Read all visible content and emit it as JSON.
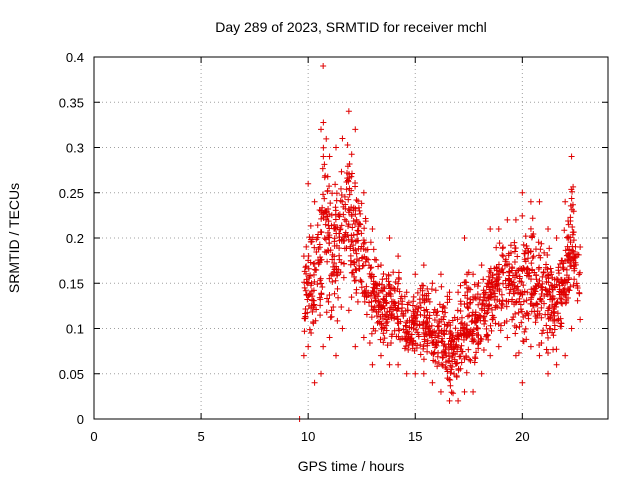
{
  "chart_data": {
    "type": "scatter",
    "title": "Day 289 of 2023, SRMTID for receiver mchl",
    "xlabel": "GPS time / hours",
    "ylabel": "SRMTID / TECUs",
    "xlim": [
      0,
      24
    ],
    "ylim": [
      0,
      0.4
    ],
    "x_ticks": [
      0,
      5,
      10,
      15,
      20
    ],
    "x_tick_labels": [
      "0",
      "5",
      "10",
      "15",
      "20"
    ],
    "y_ticks": [
      0,
      0.05,
      0.1,
      0.15,
      0.2,
      0.25,
      0.3,
      0.35,
      0.4
    ],
    "y_tick_labels": [
      "0",
      "0.05",
      "0.1",
      "0.15",
      "0.2",
      "0.25",
      "0.3",
      "0.35",
      "0.4"
    ],
    "grid": true,
    "marker": "plus",
    "series": [
      {
        "name": "SRMTID",
        "color": "#e00000",
        "envelope": [
          {
            "x": 9.6,
            "y_min": 0.0,
            "y_max": 0.0
          },
          {
            "x": 9.8,
            "y_min": 0.07,
            "y_max": 0.18
          },
          {
            "x": 10.0,
            "y_min": 0.08,
            "y_max": 0.26
          },
          {
            "x": 10.3,
            "y_min": 0.04,
            "y_max": 0.24
          },
          {
            "x": 10.6,
            "y_min": 0.05,
            "y_max": 0.32
          },
          {
            "x": 10.7,
            "y_min": 0.08,
            "y_max": 0.39
          },
          {
            "x": 11.0,
            "y_min": 0.09,
            "y_max": 0.29
          },
          {
            "x": 11.3,
            "y_min": 0.07,
            "y_max": 0.3
          },
          {
            "x": 11.6,
            "y_min": 0.1,
            "y_max": 0.31
          },
          {
            "x": 11.9,
            "y_min": 0.12,
            "y_max": 0.34
          },
          {
            "x": 12.2,
            "y_min": 0.08,
            "y_max": 0.32
          },
          {
            "x": 12.6,
            "y_min": 0.09,
            "y_max": 0.25
          },
          {
            "x": 13.0,
            "y_min": 0.06,
            "y_max": 0.21
          },
          {
            "x": 13.4,
            "y_min": 0.07,
            "y_max": 0.17
          },
          {
            "x": 13.8,
            "y_min": 0.06,
            "y_max": 0.2
          },
          {
            "x": 14.2,
            "y_min": 0.06,
            "y_max": 0.18
          },
          {
            "x": 14.6,
            "y_min": 0.05,
            "y_max": 0.14
          },
          {
            "x": 15.0,
            "y_min": 0.05,
            "y_max": 0.16
          },
          {
            "x": 15.4,
            "y_min": 0.05,
            "y_max": 0.17
          },
          {
            "x": 15.8,
            "y_min": 0.04,
            "y_max": 0.15
          },
          {
            "x": 16.2,
            "y_min": 0.03,
            "y_max": 0.16
          },
          {
            "x": 16.6,
            "y_min": 0.02,
            "y_max": 0.14
          },
          {
            "x": 17.0,
            "y_min": 0.02,
            "y_max": 0.14
          },
          {
            "x": 17.3,
            "y_min": 0.03,
            "y_max": 0.2
          },
          {
            "x": 17.7,
            "y_min": 0.03,
            "y_max": 0.16
          },
          {
            "x": 18.1,
            "y_min": 0.05,
            "y_max": 0.17
          },
          {
            "x": 18.5,
            "y_min": 0.07,
            "y_max": 0.21
          },
          {
            "x": 18.9,
            "y_min": 0.08,
            "y_max": 0.21
          },
          {
            "x": 19.3,
            "y_min": 0.09,
            "y_max": 0.22
          },
          {
            "x": 19.7,
            "y_min": 0.07,
            "y_max": 0.22
          },
          {
            "x": 20.0,
            "y_min": 0.04,
            "y_max": 0.25
          },
          {
            "x": 20.4,
            "y_min": 0.08,
            "y_max": 0.24
          },
          {
            "x": 20.8,
            "y_min": 0.07,
            "y_max": 0.24
          },
          {
            "x": 21.2,
            "y_min": 0.05,
            "y_max": 0.21
          },
          {
            "x": 21.6,
            "y_min": 0.06,
            "y_max": 0.2
          },
          {
            "x": 22.0,
            "y_min": 0.07,
            "y_max": 0.24
          },
          {
            "x": 22.3,
            "y_min": 0.1,
            "y_max": 0.29
          },
          {
            "x": 22.7,
            "y_min": 0.11,
            "y_max": 0.19
          }
        ]
      }
    ]
  }
}
